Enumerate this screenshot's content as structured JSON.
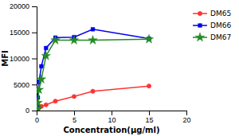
{
  "chart_data": {
    "type": "line",
    "xlabel": "Concentration(μg/ml)",
    "ylabel": "MFI",
    "x": [
      0.04,
      0.08,
      0.16,
      0.31,
      0.63,
      1.25,
      2.5,
      5,
      7.5,
      15
    ],
    "xlim": [
      0,
      20
    ],
    "xticks": [
      0,
      5,
      10,
      15,
      20
    ],
    "ylim": [
      0,
      20000
    ],
    "yticks": [
      0,
      5000,
      10000,
      15000,
      20000
    ],
    "legend": "right",
    "series": [
      {
        "name": "DM65",
        "color": "#FF3333",
        "marker": "circle",
        "values": [
          120,
          180,
          280,
          500,
          800,
          1100,
          1800,
          2700,
          3700,
          4700
        ]
      },
      {
        "name": "DM66",
        "color": "#0000EE",
        "marker": "square",
        "values": [
          300,
          800,
          2500,
          5500,
          8500,
          12000,
          14000,
          14100,
          15600,
          13800
        ]
      },
      {
        "name": "DM67",
        "color": "#228B22",
        "marker": "star",
        "values": [
          150,
          400,
          1500,
          4000,
          6000,
          10500,
          13500,
          13500,
          13500,
          13700
        ]
      }
    ]
  }
}
